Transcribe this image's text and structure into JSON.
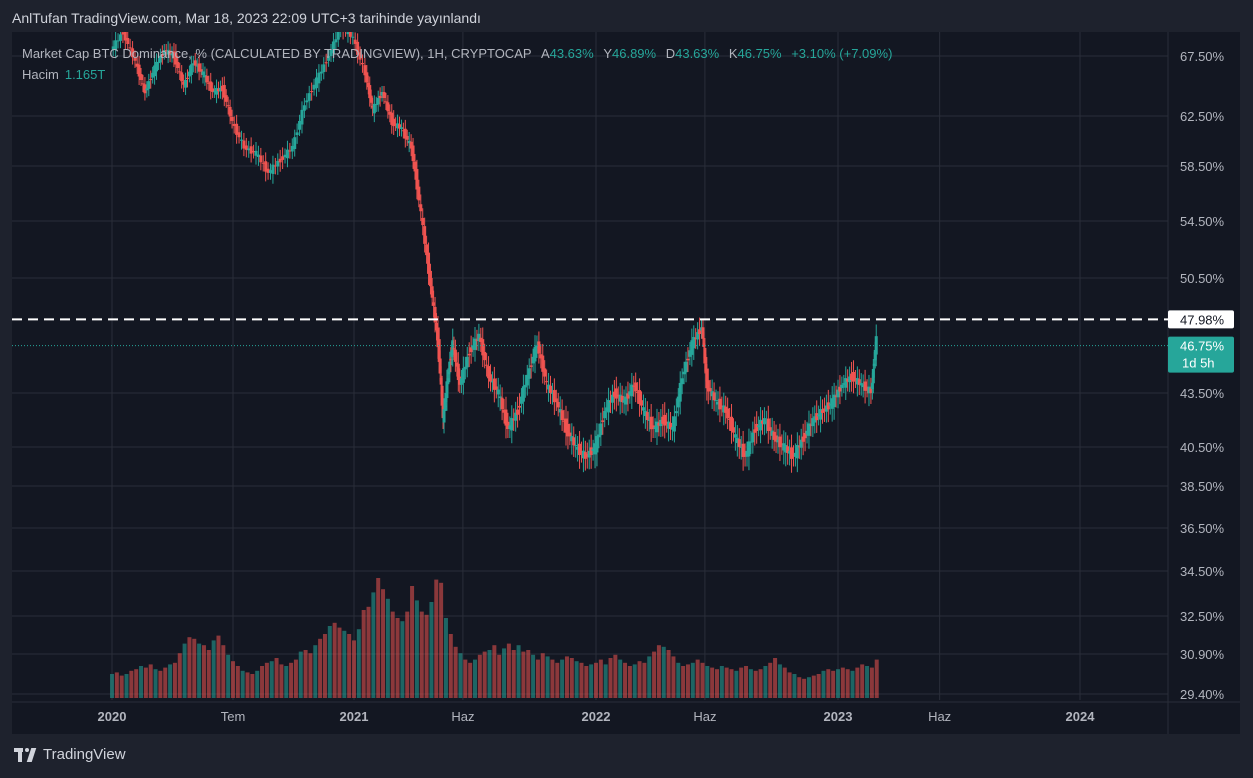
{
  "header": {
    "published": "AnlTufan TradingView.com, Mar 18, 2023 22:09 UTC+3 tarihinde yayınlandı"
  },
  "legend": {
    "symbol": "Market Cap BTC Dominance, % (CALCULATED BY TRADINGVIEW), 1H, CRYPTOCAP",
    "open_label": "A",
    "open": "43.63%",
    "high_label": "Y",
    "high": "46.89%",
    "low_label": "D",
    "low": "43.63%",
    "close_label": "K",
    "close": "46.75%",
    "change": "+3.10% (+7.09%)",
    "volume_label": "Hacim",
    "volume": "1.165T"
  },
  "footer": {
    "brand": "TradingView"
  },
  "colors": {
    "up": "#26a69a",
    "down": "#ef5350",
    "background": "#131722",
    "grid": "#2a2e39"
  },
  "chart_data": {
    "type": "candlestick",
    "y_axis_ticks": [
      "67.50%",
      "62.50%",
      "58.50%",
      "54.50%",
      "50.50%",
      "43.50%",
      "40.50%",
      "38.50%",
      "36.50%",
      "34.50%",
      "32.50%",
      "30.90%",
      "29.40%"
    ],
    "x_axis_ticks": [
      "2020",
      "Tem",
      "2021",
      "Haz",
      "2022",
      "Haz",
      "2023",
      "Haz",
      "2024"
    ],
    "x_tick_frac": [
      0.0,
      0.5,
      1.0,
      1.45,
      2.0,
      2.45,
      3.0,
      3.42,
      4.0
    ],
    "price_line": {
      "label": "47.98%",
      "value": 47.98
    },
    "last_price": {
      "label": "46.75%",
      "countdown": "1d 5h",
      "value": 46.75
    },
    "price_path": [
      [
        0.0,
        68.0
      ],
      [
        0.05,
        69.5
      ],
      [
        0.1,
        67.0
      ],
      [
        0.14,
        64.5
      ],
      [
        0.18,
        66.5
      ],
      [
        0.22,
        68.0
      ],
      [
        0.26,
        67.5
      ],
      [
        0.3,
        65.0
      ],
      [
        0.34,
        67.0
      ],
      [
        0.38,
        66.0
      ],
      [
        0.42,
        64.5
      ],
      [
        0.46,
        64.8
      ],
      [
        0.5,
        62.0
      ],
      [
        0.55,
        60.0
      ],
      [
        0.6,
        59.5
      ],
      [
        0.65,
        58.0
      ],
      [
        0.7,
        59.0
      ],
      [
        0.75,
        60.0
      ],
      [
        0.8,
        63.5
      ],
      [
        0.85,
        65.5
      ],
      [
        0.9,
        67.5
      ],
      [
        0.95,
        70.0
      ],
      [
        1.0,
        69.0
      ],
      [
        1.05,
        66.0
      ],
      [
        1.08,
        63.0
      ],
      [
        1.12,
        64.5
      ],
      [
        1.16,
        62.0
      ],
      [
        1.2,
        61.5
      ],
      [
        1.24,
        60.0
      ],
      [
        1.28,
        55.0
      ],
      [
        1.32,
        50.0
      ],
      [
        1.35,
        46.5
      ],
      [
        1.37,
        42.0
      ],
      [
        1.39,
        44.5
      ],
      [
        1.41,
        46.5
      ],
      [
        1.44,
        44.0
      ],
      [
        1.48,
        46.0
      ],
      [
        1.52,
        47.0
      ],
      [
        1.56,
        44.5
      ],
      [
        1.6,
        43.5
      ],
      [
        1.64,
        41.5
      ],
      [
        1.68,
        42.5
      ],
      [
        1.72,
        44.5
      ],
      [
        1.76,
        46.5
      ],
      [
        1.8,
        44.0
      ],
      [
        1.84,
        43.0
      ],
      [
        1.88,
        41.5
      ],
      [
        1.92,
        40.5
      ],
      [
        1.96,
        40.0
      ],
      [
        2.0,
        40.5
      ],
      [
        2.04,
        42.5
      ],
      [
        2.08,
        43.5
      ],
      [
        2.12,
        43.0
      ],
      [
        2.16,
        44.0
      ],
      [
        2.2,
        42.5
      ],
      [
        2.24,
        41.5
      ],
      [
        2.28,
        42.0
      ],
      [
        2.32,
        41.5
      ],
      [
        2.36,
        44.5
      ],
      [
        2.4,
        46.5
      ],
      [
        2.44,
        47.5
      ],
      [
        2.46,
        44.0
      ],
      [
        2.5,
        43.0
      ],
      [
        2.54,
        42.5
      ],
      [
        2.58,
        41.0
      ],
      [
        2.62,
        40.0
      ],
      [
        2.66,
        41.5
      ],
      [
        2.7,
        42.0
      ],
      [
        2.74,
        41.0
      ],
      [
        2.78,
        40.5
      ],
      [
        2.82,
        40.0
      ],
      [
        2.86,
        41.0
      ],
      [
        2.9,
        42.0
      ],
      [
        2.94,
        42.5
      ],
      [
        2.98,
        43.0
      ],
      [
        3.02,
        44.0
      ],
      [
        3.06,
        44.5
      ],
      [
        3.1,
        44.0
      ],
      [
        3.14,
        43.6
      ],
      [
        3.16,
        46.75
      ]
    ],
    "volume_bars": [
      [
        0.0,
        0.15
      ],
      [
        0.02,
        0.16
      ],
      [
        0.04,
        0.14
      ],
      [
        0.06,
        0.15
      ],
      [
        0.08,
        0.17
      ],
      [
        0.1,
        0.18
      ],
      [
        0.12,
        0.2
      ],
      [
        0.14,
        0.19
      ],
      [
        0.16,
        0.21
      ],
      [
        0.18,
        0.18
      ],
      [
        0.2,
        0.17
      ],
      [
        0.22,
        0.19
      ],
      [
        0.24,
        0.21
      ],
      [
        0.26,
        0.22
      ],
      [
        0.28,
        0.28
      ],
      [
        0.3,
        0.34
      ],
      [
        0.32,
        0.38
      ],
      [
        0.34,
        0.37
      ],
      [
        0.36,
        0.34
      ],
      [
        0.38,
        0.33
      ],
      [
        0.4,
        0.3
      ],
      [
        0.42,
        0.36
      ],
      [
        0.44,
        0.39
      ],
      [
        0.46,
        0.33
      ],
      [
        0.48,
        0.27
      ],
      [
        0.5,
        0.23
      ],
      [
        0.52,
        0.2
      ],
      [
        0.54,
        0.17
      ],
      [
        0.56,
        0.16
      ],
      [
        0.58,
        0.15
      ],
      [
        0.6,
        0.17
      ],
      [
        0.62,
        0.2
      ],
      [
        0.64,
        0.22
      ],
      [
        0.66,
        0.23
      ],
      [
        0.68,
        0.25
      ],
      [
        0.7,
        0.21
      ],
      [
        0.72,
        0.2
      ],
      [
        0.74,
        0.22
      ],
      [
        0.76,
        0.24
      ],
      [
        0.78,
        0.29
      ],
      [
        0.8,
        0.3
      ],
      [
        0.82,
        0.28
      ],
      [
        0.84,
        0.33
      ],
      [
        0.86,
        0.37
      ],
      [
        0.88,
        0.4
      ],
      [
        0.9,
        0.45
      ],
      [
        0.92,
        0.47
      ],
      [
        0.94,
        0.44
      ],
      [
        0.96,
        0.42
      ],
      [
        0.98,
        0.4
      ],
      [
        1.0,
        0.36
      ],
      [
        1.02,
        0.43
      ],
      [
        1.04,
        0.55
      ],
      [
        1.06,
        0.57
      ],
      [
        1.08,
        0.66
      ],
      [
        1.1,
        0.75
      ],
      [
        1.12,
        0.68
      ],
      [
        1.14,
        0.62
      ],
      [
        1.16,
        0.54
      ],
      [
        1.18,
        0.5
      ],
      [
        1.2,
        0.48
      ],
      [
        1.22,
        0.54
      ],
      [
        1.24,
        0.7
      ],
      [
        1.26,
        0.61
      ],
      [
        1.28,
        0.54
      ],
      [
        1.3,
        0.52
      ],
      [
        1.32,
        0.6
      ],
      [
        1.34,
        0.74
      ],
      [
        1.36,
        0.72
      ],
      [
        1.38,
        0.5
      ],
      [
        1.4,
        0.4
      ],
      [
        1.42,
        0.32
      ],
      [
        1.44,
        0.28
      ],
      [
        1.46,
        0.24
      ],
      [
        1.48,
        0.22
      ],
      [
        1.5,
        0.24
      ],
      [
        1.52,
        0.27
      ],
      [
        1.54,
        0.29
      ],
      [
        1.56,
        0.3
      ],
      [
        1.58,
        0.33
      ],
      [
        1.6,
        0.27
      ],
      [
        1.62,
        0.31
      ],
      [
        1.64,
        0.34
      ],
      [
        1.66,
        0.3
      ],
      [
        1.68,
        0.33
      ],
      [
        1.7,
        0.29
      ],
      [
        1.72,
        0.3
      ],
      [
        1.74,
        0.27
      ],
      [
        1.76,
        0.24
      ],
      [
        1.78,
        0.28
      ],
      [
        1.8,
        0.26
      ],
      [
        1.82,
        0.24
      ],
      [
        1.84,
        0.22
      ],
      [
        1.86,
        0.24
      ],
      [
        1.88,
        0.26
      ],
      [
        1.9,
        0.25
      ],
      [
        1.92,
        0.23
      ],
      [
        1.94,
        0.22
      ],
      [
        1.96,
        0.2
      ],
      [
        1.98,
        0.21
      ],
      [
        2.0,
        0.22
      ],
      [
        2.02,
        0.24
      ],
      [
        2.04,
        0.21
      ],
      [
        2.06,
        0.25
      ],
      [
        2.08,
        0.27
      ],
      [
        2.1,
        0.24
      ],
      [
        2.12,
        0.22
      ],
      [
        2.14,
        0.2
      ],
      [
        2.16,
        0.21
      ],
      [
        2.18,
        0.23
      ],
      [
        2.2,
        0.22
      ],
      [
        2.22,
        0.26
      ],
      [
        2.24,
        0.29
      ],
      [
        2.26,
        0.33
      ],
      [
        2.28,
        0.32
      ],
      [
        2.3,
        0.3
      ],
      [
        2.32,
        0.26
      ],
      [
        2.34,
        0.22
      ],
      [
        2.36,
        0.2
      ],
      [
        2.38,
        0.21
      ],
      [
        2.4,
        0.22
      ],
      [
        2.42,
        0.24
      ],
      [
        2.44,
        0.22
      ],
      [
        2.46,
        0.2
      ],
      [
        2.48,
        0.19
      ],
      [
        2.5,
        0.18
      ],
      [
        2.52,
        0.2
      ],
      [
        2.54,
        0.19
      ],
      [
        2.56,
        0.18
      ],
      [
        2.58,
        0.17
      ],
      [
        2.6,
        0.19
      ],
      [
        2.62,
        0.2
      ],
      [
        2.64,
        0.18
      ],
      [
        2.66,
        0.17
      ],
      [
        2.68,
        0.18
      ],
      [
        2.7,
        0.2
      ],
      [
        2.72,
        0.22
      ],
      [
        2.74,
        0.25
      ],
      [
        2.76,
        0.21
      ],
      [
        2.78,
        0.19
      ],
      [
        2.8,
        0.16
      ],
      [
        2.82,
        0.15
      ],
      [
        2.84,
        0.13
      ],
      [
        2.86,
        0.12
      ],
      [
        2.88,
        0.13
      ],
      [
        2.9,
        0.14
      ],
      [
        2.92,
        0.15
      ],
      [
        2.94,
        0.17
      ],
      [
        2.96,
        0.18
      ],
      [
        2.98,
        0.17
      ],
      [
        3.0,
        0.18
      ],
      [
        3.02,
        0.19
      ],
      [
        3.04,
        0.18
      ],
      [
        3.06,
        0.17
      ],
      [
        3.08,
        0.19
      ],
      [
        3.1,
        0.21
      ],
      [
        3.12,
        0.2
      ],
      [
        3.14,
        0.19
      ],
      [
        3.16,
        0.24
      ]
    ]
  }
}
